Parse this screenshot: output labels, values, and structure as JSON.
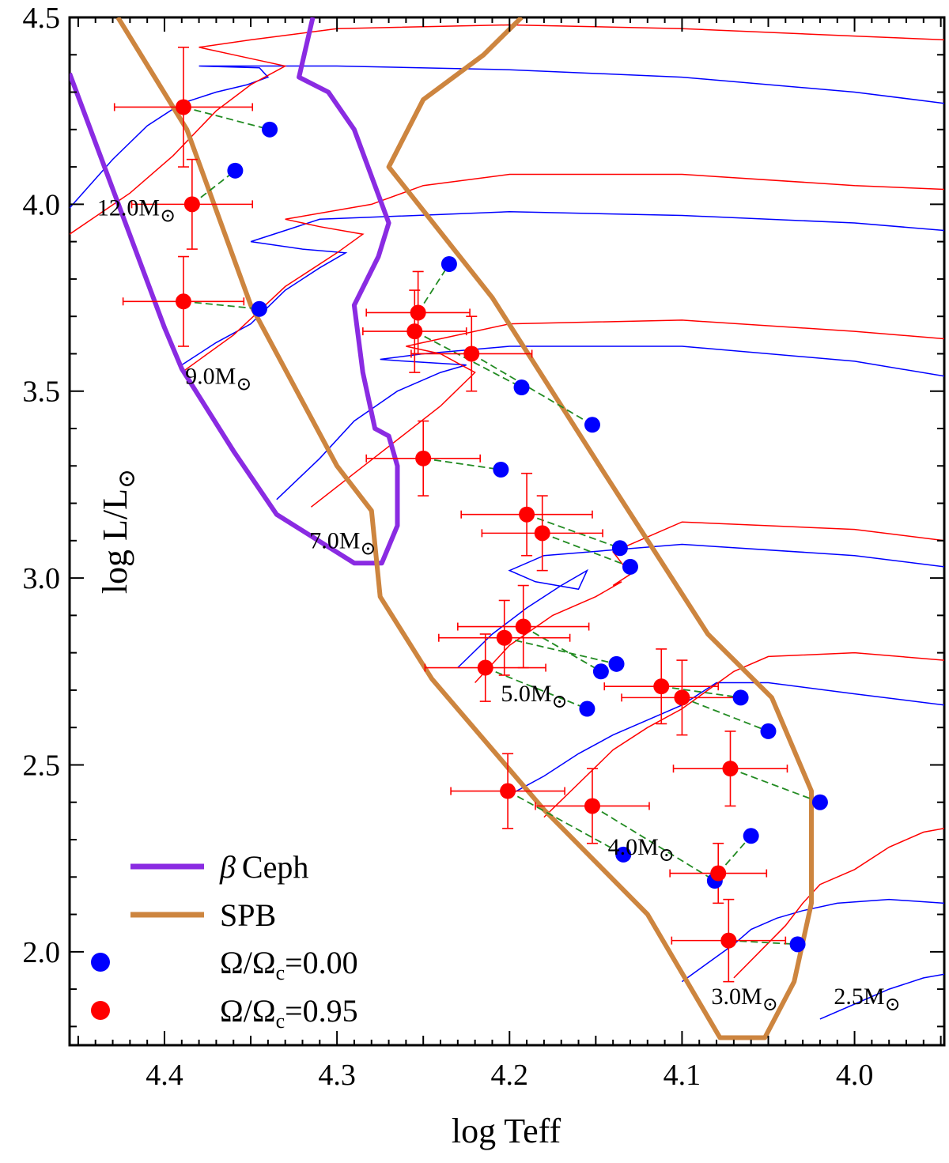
{
  "chart_data": {
    "type": "scatter",
    "xlabel": "log Teff",
    "ylabel_main": "log L/L",
    "ylabel_sub": "⊙",
    "xlim": [
      4.455,
      3.948
    ],
    "ylim": [
      1.75,
      4.5
    ],
    "x_reversed": true,
    "x_ticks": [
      "4.4",
      "4.3",
      "4.2",
      "4.1",
      "4.0"
    ],
    "y_ticks": [
      "2.0",
      "2.5",
      "3.0",
      "3.5",
      "4.0",
      "4.5"
    ],
    "grid": false,
    "legend_position": "bottom-left",
    "legend": {
      "beta_ceph": "Ceph",
      "beta_symbol": "β",
      "spb": "SPB",
      "omega0": "Ω/Ω",
      "omega0_sub": "c",
      "omega0_val": "=0.00",
      "omega95": "Ω/Ω",
      "omega95_sub": "c",
      "omega95_val": "=0.95"
    },
    "colors": {
      "beta_ceph": "#8a2be2",
      "spb": "#cd853f",
      "nonrotating": "#0000ff",
      "rotating": "#ff0000",
      "connector": "#228b22"
    },
    "mass_labels": [
      {
        "text": "12.0M",
        "sub": "⊙",
        "x": 4.439,
        "y": 3.97
      },
      {
        "text": "9.0M",
        "sub": "⊙",
        "x": 4.388,
        "y": 3.52
      },
      {
        "text": "7.0M",
        "sub": "⊙",
        "x": 4.316,
        "y": 3.08
      },
      {
        "text": "5.0M",
        "sub": "⊙",
        "x": 4.205,
        "y": 2.67
      },
      {
        "text": "4.0M",
        "sub": "⊙",
        "x": 4.143,
        "y": 2.26
      },
      {
        "text": "3.0M",
        "sub": "⊙",
        "x": 4.083,
        "y": 1.86
      },
      {
        "text": "2.5M",
        "sub": "⊙",
        "x": 4.012,
        "y": 1.86
      }
    ],
    "beta_ceph_strip": [
      [
        4.455,
        4.35
      ],
      [
        4.4,
        3.67
      ],
      [
        4.39,
        3.56
      ],
      [
        4.36,
        3.34
      ],
      [
        4.335,
        3.17
      ],
      [
        4.29,
        3.04
      ],
      [
        4.274,
        3.04
      ],
      [
        4.265,
        3.14
      ],
      [
        4.265,
        3.3
      ],
      [
        4.27,
        3.38
      ],
      [
        4.278,
        3.4
      ],
      [
        4.285,
        3.55
      ],
      [
        4.29,
        3.73
      ],
      [
        4.276,
        3.86
      ],
      [
        4.27,
        3.95
      ],
      [
        4.29,
        4.2
      ],
      [
        4.305,
        4.3
      ],
      [
        4.322,
        4.34
      ],
      [
        4.314,
        4.5
      ]
    ],
    "spb_strip": [
      [
        4.427,
        4.5
      ],
      [
        4.387,
        4.2
      ],
      [
        4.35,
        3.73
      ],
      [
        4.3,
        3.3
      ],
      [
        4.28,
        3.18
      ],
      [
        4.275,
        2.95
      ],
      [
        4.245,
        2.73
      ],
      [
        4.18,
        2.38
      ],
      [
        4.12,
        2.1
      ],
      [
        4.078,
        1.77
      ],
      [
        4.052,
        1.77
      ],
      [
        4.035,
        1.92
      ],
      [
        4.025,
        2.13
      ],
      [
        4.025,
        2.43
      ],
      [
        4.048,
        2.68
      ],
      [
        4.085,
        2.85
      ],
      [
        4.145,
        3.28
      ],
      [
        4.21,
        3.75
      ],
      [
        4.27,
        4.1
      ],
      [
        4.25,
        4.28
      ],
      [
        4.215,
        4.4
      ],
      [
        4.193,
        4.5
      ]
    ],
    "tracks_nonrotating": [
      [
        [
          4.455,
          3.99
        ],
        [
          4.43,
          4.12
        ],
        [
          4.41,
          4.21
        ],
        [
          4.39,
          4.27
        ],
        [
          4.37,
          4.3
        ],
        [
          4.352,
          4.32
        ],
        [
          4.34,
          4.34
        ],
        [
          4.345,
          4.365
        ],
        [
          4.38,
          4.37
        ],
        [
          4.3,
          4.37
        ],
        [
          4.2,
          4.36
        ],
        [
          4.1,
          4.34
        ],
        [
          4.0,
          4.3
        ],
        [
          3.948,
          4.27
        ]
      ],
      [
        [
          4.39,
          3.57
        ],
        [
          4.37,
          3.63
        ],
        [
          4.35,
          3.68
        ],
        [
          4.33,
          3.77
        ],
        [
          4.31,
          3.83
        ],
        [
          4.295,
          3.87
        ],
        [
          4.32,
          3.88
        ],
        [
          4.35,
          3.9
        ],
        [
          4.33,
          3.93
        ],
        [
          4.31,
          3.96
        ],
        [
          4.2,
          3.98
        ],
        [
          4.1,
          3.97
        ],
        [
          4.0,
          3.95
        ],
        [
          3.948,
          3.93
        ]
      ],
      [
        [
          4.335,
          3.21
        ],
        [
          4.31,
          3.32
        ],
        [
          4.29,
          3.42
        ],
        [
          4.265,
          3.5
        ],
        [
          4.24,
          3.55
        ],
        [
          4.225,
          3.57
        ],
        [
          4.26,
          3.58
        ],
        [
          4.275,
          3.585
        ],
        [
          4.25,
          3.6
        ],
        [
          4.2,
          3.62
        ],
        [
          4.1,
          3.62
        ],
        [
          4.0,
          3.58
        ],
        [
          3.948,
          3.54
        ]
      ],
      [
        [
          4.23,
          2.76
        ],
        [
          4.21,
          2.85
        ],
        [
          4.19,
          2.92
        ],
        [
          4.17,
          2.98
        ],
        [
          4.155,
          3.02
        ],
        [
          4.16,
          2.97
        ],
        [
          4.185,
          2.99
        ],
        [
          4.2,
          3.02
        ],
        [
          4.18,
          3.06
        ],
        [
          4.1,
          3.09
        ],
        [
          4.0,
          3.06
        ],
        [
          3.948,
          3.03
        ]
      ],
      [
        [
          4.2,
          2.42
        ],
        [
          4.18,
          2.47
        ],
        [
          4.16,
          2.53
        ],
        [
          4.14,
          2.58
        ],
        [
          4.12,
          2.62
        ],
        [
          4.1,
          2.66
        ],
        [
          4.09,
          2.69
        ],
        [
          4.08,
          2.72
        ],
        [
          4.05,
          2.72
        ],
        [
          4.0,
          2.69
        ],
        [
          3.948,
          2.66
        ]
      ],
      [
        [
          4.1,
          1.92
        ],
        [
          4.085,
          1.97
        ],
        [
          4.07,
          2.02
        ],
        [
          4.06,
          2.06
        ],
        [
          4.045,
          2.09
        ],
        [
          4.03,
          2.11
        ],
        [
          4.01,
          2.13
        ],
        [
          3.98,
          2.14
        ],
        [
          3.948,
          2.13
        ]
      ],
      [
        [
          4.02,
          1.82
        ],
        [
          4.0,
          1.86
        ],
        [
          3.98,
          1.9
        ],
        [
          3.96,
          1.93
        ],
        [
          3.948,
          1.94
        ]
      ]
    ],
    "tracks_rotating": [
      [
        [
          4.455,
          3.92
        ],
        [
          4.42,
          4.03
        ],
        [
          4.395,
          4.13
        ],
        [
          4.37,
          4.25
        ],
        [
          4.35,
          4.32
        ],
        [
          4.33,
          4.37
        ],
        [
          4.36,
          4.4
        ],
        [
          4.38,
          4.42
        ],
        [
          4.35,
          4.44
        ],
        [
          4.3,
          4.47
        ],
        [
          4.2,
          4.48
        ],
        [
          4.1,
          4.47
        ],
        [
          4.0,
          4.45
        ],
        [
          3.948,
          4.44
        ]
      ],
      [
        [
          4.39,
          3.55
        ],
        [
          4.36,
          3.65
        ],
        [
          4.33,
          3.78
        ],
        [
          4.3,
          3.87
        ],
        [
          4.285,
          3.92
        ],
        [
          4.31,
          3.94
        ],
        [
          4.33,
          3.96
        ],
        [
          4.28,
          4.0
        ],
        [
          4.25,
          4.05
        ],
        [
          4.2,
          4.08
        ],
        [
          4.1,
          4.08
        ],
        [
          4.0,
          4.05
        ],
        [
          3.948,
          4.04
        ]
      ],
      [
        [
          4.315,
          3.19
        ],
        [
          4.29,
          3.28
        ],
        [
          4.265,
          3.37
        ],
        [
          4.24,
          3.46
        ],
        [
          4.22,
          3.55
        ],
        [
          4.24,
          3.6
        ],
        [
          4.26,
          3.62
        ],
        [
          4.24,
          3.64
        ],
        [
          4.2,
          3.68
        ],
        [
          4.1,
          3.69
        ],
        [
          4.0,
          3.66
        ],
        [
          3.948,
          3.64
        ]
      ],
      [
        [
          4.22,
          2.72
        ],
        [
          4.2,
          2.82
        ],
        [
          4.175,
          2.9
        ],
        [
          4.15,
          2.95
        ],
        [
          4.135,
          2.99
        ],
        [
          4.14,
          2.98
        ],
        [
          4.13,
          3.01
        ],
        [
          4.14,
          3.07
        ],
        [
          4.1,
          3.15
        ],
        [
          4.0,
          3.13
        ],
        [
          3.948,
          3.1
        ]
      ],
      [
        [
          4.18,
          2.36
        ],
        [
          4.16,
          2.45
        ],
        [
          4.14,
          2.54
        ],
        [
          4.12,
          2.6
        ],
        [
          4.1,
          2.65
        ],
        [
          4.085,
          2.7
        ],
        [
          4.07,
          2.75
        ],
        [
          4.05,
          2.79
        ],
        [
          4.0,
          2.8
        ],
        [
          3.948,
          2.78
        ]
      ],
      [
        [
          4.07,
          1.93
        ],
        [
          4.055,
          2.0
        ],
        [
          4.04,
          2.07
        ],
        [
          4.03,
          2.13
        ],
        [
          4.02,
          2.18
        ],
        [
          4.0,
          2.22
        ],
        [
          3.98,
          2.28
        ],
        [
          3.96,
          2.32
        ],
        [
          3.948,
          2.33
        ]
      ]
    ],
    "stars": [
      {
        "rot": [
          4.389,
          4.26
        ],
        "xerr": 0.04,
        "yerr": 0.16,
        "nonrot": [
          4.339,
          4.2
        ]
      },
      {
        "rot": [
          4.384,
          4.0
        ],
        "xerr": 0.035,
        "yerr": 0.12,
        "nonrot": [
          4.359,
          4.09
        ]
      },
      {
        "rot": [
          4.389,
          3.74
        ],
        "xerr": 0.035,
        "yerr": 0.12,
        "nonrot": [
          4.345,
          3.72
        ]
      },
      {
        "rot": [
          4.253,
          3.71
        ],
        "xerr": 0.03,
        "yerr": 0.11,
        "nonrot": [
          4.235,
          3.84
        ]
      },
      {
        "rot": [
          4.255,
          3.66
        ],
        "xerr": 0.03,
        "yerr": 0.11,
        "nonrot": [
          4.193,
          3.51
        ]
      },
      {
        "rot": [
          4.222,
          3.6
        ],
        "xerr": 0.035,
        "yerr": 0.1,
        "nonrot": [
          4.152,
          3.41
        ]
      },
      {
        "rot": [
          4.25,
          3.32
        ],
        "xerr": 0.033,
        "yerr": 0.1,
        "nonrot": [
          4.205,
          3.29
        ]
      },
      {
        "rot": [
          4.19,
          3.17
        ],
        "xerr": 0.038,
        "yerr": 0.11,
        "nonrot": [
          4.136,
          3.08
        ]
      },
      {
        "rot": [
          4.181,
          3.12
        ],
        "xerr": 0.035,
        "yerr": 0.1,
        "nonrot": [
          4.13,
          3.03
        ]
      },
      {
        "rot": [
          4.203,
          2.84
        ],
        "xerr": 0.038,
        "yerr": 0.1,
        "nonrot": [
          4.138,
          2.77
        ]
      },
      {
        "rot": [
          4.192,
          2.87
        ],
        "xerr": 0.038,
        "yerr": 0.11,
        "nonrot": [
          4.147,
          2.75
        ]
      },
      {
        "rot": [
          4.214,
          2.76
        ],
        "xerr": 0.035,
        "yerr": 0.09,
        "nonrot": [
          4.155,
          2.65
        ]
      },
      {
        "rot": [
          4.112,
          2.71
        ],
        "xerr": 0.033,
        "yerr": 0.1,
        "nonrot": [
          4.066,
          2.68
        ]
      },
      {
        "rot": [
          4.1,
          2.68
        ],
        "xerr": 0.035,
        "yerr": 0.1,
        "nonrot": [
          4.05,
          2.59
        ]
      },
      {
        "rot": [
          4.072,
          2.49
        ],
        "xerr": 0.033,
        "yerr": 0.1,
        "nonrot": [
          4.02,
          2.4
        ]
      },
      {
        "rot": [
          4.201,
          2.43
        ],
        "xerr": 0.033,
        "yerr": 0.1,
        "nonrot": [
          4.134,
          2.26
        ]
      },
      {
        "rot": [
          4.152,
          2.39
        ],
        "xerr": 0.033,
        "yerr": 0.1,
        "nonrot": [
          4.081,
          2.19
        ]
      },
      {
        "rot": [
          4.079,
          2.21
        ],
        "xerr": 0.028,
        "yerr": 0.08,
        "nonrot": [
          4.06,
          2.31
        ]
      },
      {
        "rot": [
          4.073,
          2.03
        ],
        "xerr": 0.033,
        "yerr": 0.11,
        "nonrot": [
          4.033,
          2.02
        ]
      }
    ]
  }
}
